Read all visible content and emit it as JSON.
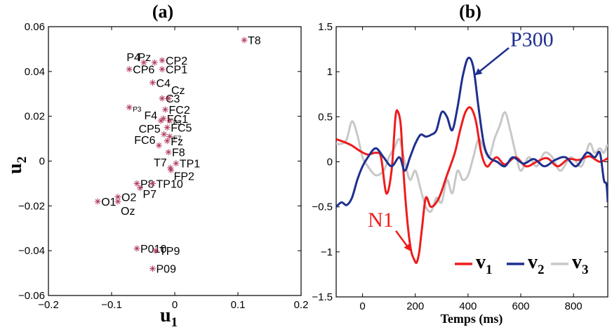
{
  "chart_data": [
    {
      "type": "scatter",
      "panel_label": "(a)",
      "xlabel": "u",
      "xlabel_sub": "1",
      "ylabel": "u",
      "ylabel_sub": "2",
      "xlim": [
        -0.2,
        0.2
      ],
      "ylim": [
        -0.06,
        0.06
      ],
      "xticks": [
        -0.2,
        -0.1,
        0,
        0.1,
        0.2
      ],
      "xtick_labels": [
        "−0.2",
        "−0.1",
        "0",
        "0.1",
        "0.2"
      ],
      "yticks": [
        0.06,
        0.04,
        0.02,
        0,
        -0.02,
        -0.04,
        -0.06
      ],
      "ytick_labels": [
        "0.06",
        "0.04",
        "0.02",
        "0",
        "−0.02",
        "−0.04",
        "−0.06"
      ],
      "marker_color": "#b03a5b",
      "points": [
        {
          "x": 0.11,
          "y": 0.054,
          "label": "T8",
          "pos": "right"
        },
        {
          "x": -0.049,
          "y": 0.044,
          "label": "P4",
          "pos": "left"
        },
        {
          "x": -0.032,
          "y": 0.044,
          "label": "Pz",
          "pos": "left"
        },
        {
          "x": -0.02,
          "y": 0.045,
          "label": "CP2",
          "pos": "right"
        },
        {
          "x": -0.072,
          "y": 0.041,
          "label": "CP6",
          "pos": "right"
        },
        {
          "x": -0.02,
          "y": 0.041,
          "label": "CP1",
          "pos": "right"
        },
        {
          "x": -0.035,
          "y": 0.035,
          "label": "C4",
          "pos": "right"
        },
        {
          "x": -0.02,
          "y": 0.028,
          "label": "C3",
          "pos": "right"
        },
        {
          "x": -0.01,
          "y": 0.028,
          "label": "Cz",
          "pos": "up"
        },
        {
          "x": -0.072,
          "y": 0.024,
          "label": "P3",
          "pos": "right",
          "small": true
        },
        {
          "x": -0.015,
          "y": 0.023,
          "label": "FC2",
          "pos": "right"
        },
        {
          "x": -0.018,
          "y": 0.019,
          "label": "FC1",
          "pos": "right"
        },
        {
          "x": -0.008,
          "y": 0.018,
          "label": "F3",
          "pos": "right",
          "small": true
        },
        {
          "x": -0.022,
          "y": 0.018,
          "label": "F4",
          "pos": "left"
        },
        {
          "x": -0.012,
          "y": 0.015,
          "label": "FC5",
          "pos": "right"
        },
        {
          "x": -0.017,
          "y": 0.012,
          "label": "CP5",
          "pos": "left"
        },
        {
          "x": -0.008,
          "y": 0.011,
          "label": "F7",
          "pos": "right",
          "small": true
        },
        {
          "x": -0.012,
          "y": 0.009,
          "label": "Fz",
          "pos": "right"
        },
        {
          "x": -0.025,
          "y": 0.007,
          "label": "FC6",
          "pos": "left"
        },
        {
          "x": -0.01,
          "y": 0.004,
          "label": "F8",
          "pos": "right"
        },
        {
          "x": 0.002,
          "y": -0.001,
          "label": "TP1",
          "pos": "right"
        },
        {
          "x": -0.007,
          "y": -0.003,
          "label": "T7",
          "pos": "left"
        },
        {
          "x": -0.006,
          "y": -0.004,
          "label": "FP2",
          "pos": "rightdown"
        },
        {
          "x": -0.06,
          "y": -0.01,
          "label": "P8",
          "pos": "right"
        },
        {
          "x": -0.055,
          "y": -0.012,
          "label": "P7",
          "pos": "rightdown"
        },
        {
          "x": -0.035,
          "y": -0.01,
          "label": "TP10",
          "pos": "right"
        },
        {
          "x": -0.09,
          "y": -0.016,
          "label": "O2",
          "pos": "right"
        },
        {
          "x": -0.122,
          "y": -0.018,
          "label": "O1",
          "pos": "right"
        },
        {
          "x": -0.09,
          "y": -0.018,
          "label": "Oz",
          "pos": "belowright"
        },
        {
          "x": -0.06,
          "y": -0.039,
          "label": "P010",
          "pos": "right"
        },
        {
          "x": -0.03,
          "y": -0.04,
          "label": "TP9",
          "pos": "right"
        },
        {
          "x": -0.035,
          "y": -0.048,
          "label": "P09",
          "pos": "right"
        }
      ]
    },
    {
      "type": "line",
      "panel_label": "(b)",
      "xlabel": "Temps (ms)",
      "xlim": [
        -100,
        930
      ],
      "ylim": [
        -1.5,
        1.5
      ],
      "xticks": [
        0,
        200,
        400,
        600,
        800
      ],
      "xtick_labels": [
        "0",
        "200",
        "400",
        "600",
        "800"
      ],
      "yticks": [
        1.5,
        1,
        0.5,
        0,
        -0.5,
        -1,
        -1.5
      ],
      "ytick_labels": [
        "1.5",
        "1",
        "0.5",
        "0",
        "−0.5",
        "−1",
        "−1.5"
      ],
      "series": [
        {
          "name": "v",
          "sub": "1",
          "color": "#ee1c1c",
          "x": [
            -100,
            -70,
            -40,
            -10,
            20,
            50,
            70,
            90,
            110,
            125,
            135,
            145,
            155,
            165,
            175,
            185,
            195,
            205,
            215,
            225,
            240,
            260,
            290,
            320,
            350,
            370,
            390,
            410,
            430,
            450,
            470,
            490,
            510,
            540,
            580,
            620,
            660,
            700,
            740,
            780,
            820,
            860,
            900,
            930
          ],
          "y": [
            0.25,
            0.22,
            0.18,
            0.12,
            0.08,
            0.1,
            0.05,
            -0.35,
            -0.1,
            0.5,
            0.55,
            0.4,
            -0.1,
            -0.5,
            -0.8,
            -1.0,
            -1.08,
            -1.12,
            -1.0,
            -0.75,
            -0.4,
            -0.5,
            -0.4,
            -0.15,
            0.1,
            0.35,
            0.55,
            0.6,
            0.45,
            0.1,
            -0.05,
            0.0,
            0.05,
            -0.03,
            0.05,
            -0.05,
            0.0,
            0.04,
            -0.05,
            0.03,
            0.02,
            0.06,
            0.0,
            0.04
          ]
        },
        {
          "name": "v",
          "sub": "2",
          "color": "#1f2f8f",
          "x": [
            -100,
            -80,
            -60,
            -40,
            -20,
            0,
            20,
            50,
            80,
            110,
            140,
            160,
            180,
            200,
            220,
            240,
            260,
            280,
            300,
            320,
            340,
            360,
            380,
            400,
            420,
            440,
            460,
            480,
            510,
            540,
            570,
            610,
            650,
            690,
            730,
            770,
            810,
            850,
            880,
            900,
            915,
            925,
            930
          ],
          "y": [
            -0.5,
            -0.45,
            -0.48,
            -0.4,
            -0.2,
            -0.05,
            0.05,
            0.15,
            0.05,
            -0.05,
            0.05,
            -0.1,
            0.05,
            0.2,
            0.3,
            0.28,
            0.3,
            0.35,
            0.55,
            0.5,
            0.35,
            0.6,
            0.95,
            1.15,
            1.05,
            0.6,
            0.2,
            0.05,
            0.0,
            -0.05,
            0.05,
            -0.02,
            0.03,
            -0.05,
            0.02,
            0.05,
            -0.05,
            0.1,
            0.05,
            0.1,
            -0.2,
            -0.25,
            -0.45
          ]
        },
        {
          "name": "v",
          "sub": "3",
          "color": "#c8c8c8",
          "x": [
            -100,
            -80,
            -60,
            -40,
            -20,
            0,
            20,
            50,
            80,
            100,
            120,
            140,
            160,
            180,
            200,
            220,
            240,
            260,
            280,
            300,
            320,
            340,
            360,
            380,
            400,
            420,
            440,
            460,
            480,
            500,
            520,
            540,
            560,
            580,
            600,
            630,
            660,
            690,
            720,
            750,
            790,
            830,
            860,
            880,
            900,
            915,
            930
          ],
          "y": [
            0.2,
            0.2,
            0.25,
            0.45,
            0.3,
            0.05,
            -0.05,
            -0.15,
            -0.1,
            0.05,
            0.15,
            0.25,
            0.0,
            -0.2,
            -0.1,
            -0.3,
            -0.5,
            -0.55,
            -0.4,
            -0.45,
            -0.2,
            -0.35,
            -0.1,
            -0.2,
            -0.15,
            0.05,
            0.25,
            0.15,
            0.05,
            0.25,
            0.4,
            0.55,
            0.35,
            0.1,
            -0.1,
            0.05,
            -0.05,
            0.1,
            0.05,
            -0.1,
            0.05,
            -0.05,
            0.2,
            0.1,
            0.15,
            0.1,
            0.2
          ]
        }
      ],
      "annotations": [
        {
          "text": "P300",
          "color": "#1f2f8f",
          "x": 560,
          "y": 1.28,
          "arrow_to": [
            430,
            0.97
          ]
        },
        {
          "text": "N1",
          "color": "#ee1c1c",
          "x": 20,
          "y": -0.72,
          "arrow_to": [
            180,
            -0.98
          ]
        }
      ]
    }
  ]
}
